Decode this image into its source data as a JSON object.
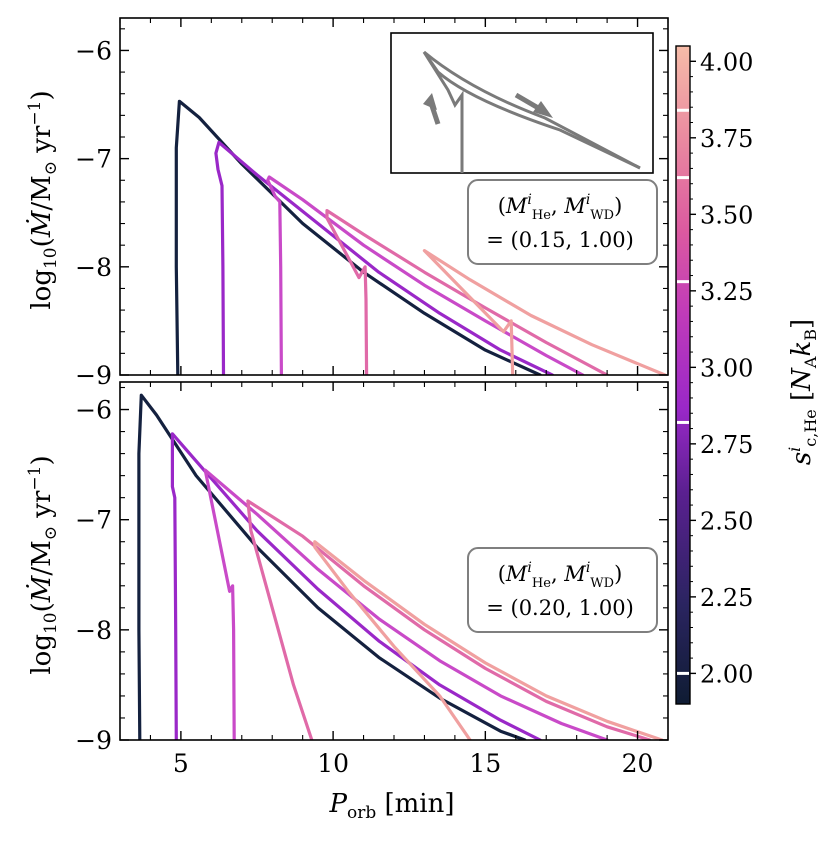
{
  "figure": {
    "xlabel": "P_orb [min]",
    "colorbar_label": "s^i_c,He [N_A k_B]"
  },
  "colorbar": {
    "ticks": [
      2.0,
      2.25,
      2.5,
      2.75,
      3.0,
      3.25,
      3.5,
      3.75,
      4.0
    ],
    "tick_labels": [
      "2.00",
      "2.25",
      "2.50",
      "2.75",
      "3.00",
      "3.25",
      "3.50",
      "3.75",
      "4.00"
    ],
    "range": [
      1.9,
      4.05
    ],
    "marked_values": [
      2.0,
      2.82,
      3.28,
      3.62,
      3.84
    ]
  },
  "chart_data": [
    {
      "type": "line",
      "panel": "top",
      "ylabel": "log10(Mdot / Msun yr^-1)",
      "xlim": [
        3.0,
        21.0
      ],
      "ylim": [
        -9.0,
        -5.7
      ],
      "x_ticks": [
        5,
        10,
        15,
        20
      ],
      "y_ticks": [
        -9,
        -8,
        -7,
        -6
      ],
      "y_tick_labels": [
        "−9",
        "−8",
        "−7",
        "−6"
      ],
      "annotation": [
        "(M^i_He, M^i_WD)",
        "= (0.15, 1.00)"
      ],
      "inset": "schematic track: rising leg, bump, then declining leg (arrows indicate direction)",
      "series": [
        {
          "name": "s=2.00",
          "color": "#14213f",
          "x": [
            4.9,
            4.85,
            4.85,
            4.95,
            5.6,
            7.0,
            9.0,
            11.0,
            13.0,
            15.0,
            16.8
          ],
          "y": [
            -9.0,
            -8.0,
            -6.9,
            -6.47,
            -6.62,
            -7.05,
            -7.6,
            -8.05,
            -8.43,
            -8.77,
            -9.0
          ]
        },
        {
          "name": "s=2.82",
          "color": "#9a28c8",
          "x": [
            6.4,
            6.38,
            6.35,
            6.22,
            6.15,
            6.25,
            7.5,
            9.5,
            11.5,
            13.5,
            15.5,
            17.2
          ],
          "y": [
            -9.0,
            -8.0,
            -7.25,
            -7.1,
            -6.95,
            -6.85,
            -7.15,
            -7.6,
            -8.05,
            -8.43,
            -8.77,
            -9.0
          ]
        },
        {
          "name": "s=3.28",
          "color": "#c94ac8",
          "x": [
            8.3,
            8.28,
            8.25,
            8.1,
            7.85,
            7.9,
            9.0,
            11.0,
            13.0,
            15.0,
            17.0,
            18.2
          ],
          "y": [
            -9.0,
            -8.0,
            -7.4,
            -7.35,
            -7.2,
            -7.17,
            -7.38,
            -7.8,
            -8.17,
            -8.5,
            -8.82,
            -9.0
          ]
        },
        {
          "name": "s=3.62",
          "color": "#e06aa8",
          "x": [
            11.1,
            11.08,
            11.05,
            10.85,
            9.8,
            9.8,
            11.0,
            13.0,
            15.0,
            17.0,
            19.0
          ],
          "y": [
            -9.0,
            -8.3,
            -8.0,
            -8.1,
            -7.55,
            -7.48,
            -7.7,
            -8.05,
            -8.38,
            -8.7,
            -9.0
          ]
        },
        {
          "name": "s=3.84",
          "color": "#f0a0a0",
          "x": [
            15.9,
            15.88,
            15.85,
            15.6,
            13.0,
            13.0,
            14.5,
            16.5,
            18.5,
            20.9
          ],
          "y": [
            -9.0,
            -8.8,
            -8.5,
            -8.6,
            -7.85,
            -7.85,
            -8.12,
            -8.45,
            -8.72,
            -9.0
          ]
        }
      ]
    },
    {
      "type": "line",
      "panel": "bottom",
      "ylabel": "log10(Mdot / Msun yr^-1)",
      "xlim": [
        3.0,
        21.0
      ],
      "ylim": [
        -9.0,
        -5.75
      ],
      "x_ticks": [
        5,
        10,
        15,
        20
      ],
      "x_tick_labels": [
        "5",
        "10",
        "15",
        "20"
      ],
      "y_ticks": [
        -9,
        -8,
        -7,
        -6
      ],
      "y_tick_labels": [
        "−9",
        "−8",
        "−7",
        "−6"
      ],
      "annotation": [
        "(M^i_He, M^i_WD)",
        "= (0.20, 1.00)"
      ],
      "series": [
        {
          "name": "s=2.00",
          "color": "#14213f",
          "x": [
            3.65,
            3.62,
            3.62,
            3.7,
            4.2,
            5.5,
            7.5,
            9.5,
            11.5,
            13.5,
            15.5,
            16.3
          ],
          "y": [
            -9.0,
            -8.0,
            -6.4,
            -5.87,
            -6.05,
            -6.6,
            -7.25,
            -7.8,
            -8.25,
            -8.62,
            -8.92,
            -9.0
          ]
        },
        {
          "name": "s=2.82",
          "color": "#9a28c8",
          "x": [
            4.85,
            4.83,
            4.8,
            4.72,
            4.72,
            5.6,
            7.5,
            9.5,
            11.5,
            13.5,
            15.5,
            16.8
          ],
          "y": [
            -9.0,
            -8.0,
            -6.8,
            -6.7,
            -6.22,
            -6.5,
            -7.1,
            -7.63,
            -8.1,
            -8.5,
            -8.82,
            -9.0
          ]
        },
        {
          "name": "s=3.28",
          "color": "#c94ac8",
          "x": [
            6.75,
            6.73,
            6.7,
            6.6,
            5.8,
            5.8,
            7.5,
            9.5,
            11.5,
            13.5,
            15.5,
            17.5,
            19.0
          ],
          "y": [
            -9.0,
            -8.0,
            -7.6,
            -7.65,
            -6.55,
            -6.55,
            -6.95,
            -7.45,
            -7.9,
            -8.28,
            -8.6,
            -8.85,
            -9.0
          ]
        },
        {
          "name": "s=3.62",
          "color": "#e06aa8",
          "x": [
            9.3,
            8.7,
            8.0,
            7.3,
            7.2,
            9.0,
            11.0,
            13.0,
            15.0,
            17.0,
            19.0,
            20.4
          ],
          "y": [
            -9.0,
            -8.5,
            -7.8,
            -7.1,
            -6.83,
            -7.15,
            -7.6,
            -8.0,
            -8.35,
            -8.65,
            -8.88,
            -9.0
          ]
        },
        {
          "name": "s=3.84",
          "color": "#f0a0a0",
          "x": [
            14.5,
            13.5,
            12.0,
            10.5,
            9.4,
            9.4,
            11.0,
            13.0,
            15.0,
            17.0,
            19.0,
            20.8
          ],
          "y": [
            -9.0,
            -8.6,
            -8.15,
            -7.65,
            -7.25,
            -7.2,
            -7.55,
            -7.95,
            -8.3,
            -8.6,
            -8.83,
            -9.0
          ]
        }
      ]
    }
  ]
}
